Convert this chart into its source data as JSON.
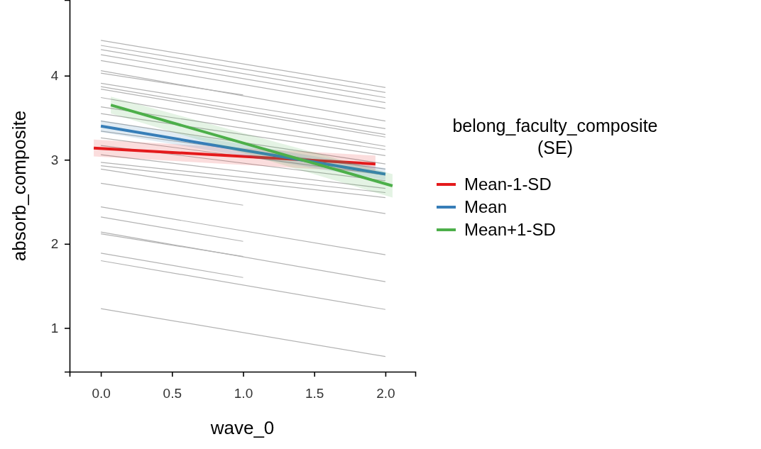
{
  "chart_data": {
    "type": "line",
    "xlabel": "wave_0",
    "ylabel": "absorb_composite",
    "legend_title": "belong_faculty_composite (SE)",
    "legend": "right",
    "grid": false,
    "xlim": [
      -0.22,
      2.21
    ],
    "ylim": [
      0.48,
      4.9
    ],
    "xticks": [
      {
        "value": 0,
        "label": "0.0"
      },
      {
        "value": 0.5,
        "label": "0.5"
      },
      {
        "value": 1,
        "label": "1.0"
      },
      {
        "value": 1.5,
        "label": "1.5"
      },
      {
        "value": 2,
        "label": "2.0"
      }
    ],
    "yticks": [
      1,
      2,
      3,
      4
    ],
    "series": [
      {
        "color": "#b3b3b3",
        "x": [
          0,
          2
        ],
        "values": [
          4.42,
          3.86
        ]
      },
      {
        "color": "#b3b3b3",
        "x": [
          0,
          2
        ],
        "values": [
          4.36,
          3.8
        ]
      },
      {
        "color": "#b3b3b3",
        "x": [
          0,
          2
        ],
        "values": [
          4.31,
          3.74
        ]
      },
      {
        "color": "#b3b3b3",
        "x": [
          0,
          2
        ],
        "values": [
          4.25,
          3.68
        ]
      },
      {
        "color": "#b3b3b3",
        "x": [
          0,
          2
        ],
        "values": [
          4.18,
          3.61
        ]
      },
      {
        "color": "#b3b3b3",
        "x": [
          0,
          2
        ],
        "values": [
          4.06,
          3.46
        ]
      },
      {
        "color": "#b3b3b3",
        "x": [
          0,
          1
        ],
        "values": [
          4.03,
          3.77
        ]
      },
      {
        "color": "#b3b3b3",
        "x": [
          0,
          2
        ],
        "values": [
          3.91,
          3.37
        ]
      },
      {
        "color": "#b3b3b3",
        "x": [
          0,
          2
        ],
        "values": [
          3.87,
          3.3
        ]
      },
      {
        "color": "#b3b3b3",
        "x": [
          0,
          2
        ],
        "values": [
          3.84,
          3.27
        ]
      },
      {
        "color": "#b3b3b3",
        "x": [
          0,
          2
        ],
        "values": [
          3.74,
          3.16
        ]
      },
      {
        "color": "#b3b3b3",
        "x": [
          0,
          2
        ],
        "values": [
          3.63,
          3.12
        ]
      },
      {
        "color": "#b3b3b3",
        "x": [
          0,
          2
        ],
        "values": [
          3.55,
          3.05
        ]
      },
      {
        "color": "#b3b3b3",
        "x": [
          0,
          2
        ],
        "values": [
          3.46,
          2.95
        ]
      },
      {
        "color": "#b3b3b3",
        "x": [
          0,
          2
        ],
        "values": [
          3.34,
          2.89
        ]
      },
      {
        "color": "#b3b3b3",
        "x": [
          0,
          2
        ],
        "values": [
          3.26,
          2.82
        ]
      },
      {
        "color": "#b3b3b3",
        "x": [
          0,
          2
        ],
        "values": [
          3.17,
          2.75
        ]
      },
      {
        "color": "#b3b3b3",
        "x": [
          0,
          2
        ],
        "values": [
          3.06,
          2.66
        ]
      },
      {
        "color": "#b3b3b3",
        "x": [
          0,
          2
        ],
        "values": [
          2.97,
          2.61
        ]
      },
      {
        "color": "#b3b3b3",
        "x": [
          0,
          2
        ],
        "values": [
          2.93,
          2.55
        ]
      },
      {
        "color": "#b3b3b3",
        "x": [
          0,
          2
        ],
        "values": [
          2.89,
          2.36
        ]
      },
      {
        "color": "#b3b3b3",
        "x": [
          0,
          1
        ],
        "values": [
          2.72,
          2.46
        ]
      },
      {
        "color": "#b3b3b3",
        "x": [
          0,
          2
        ],
        "values": [
          2.44,
          1.87
        ]
      },
      {
        "color": "#b3b3b3",
        "x": [
          0,
          1
        ],
        "values": [
          2.32,
          2.03
        ]
      },
      {
        "color": "#b3b3b3",
        "x": [
          0,
          2
        ],
        "values": [
          2.14,
          1.55
        ]
      },
      {
        "color": "#b3b3b3",
        "x": [
          0,
          1
        ],
        "values": [
          2.12,
          1.85
        ]
      },
      {
        "color": "#b3b3b3",
        "x": [
          0,
          1
        ],
        "values": [
          1.89,
          1.6
        ]
      },
      {
        "color": "#b3b3b3",
        "x": [
          0,
          2
        ],
        "values": [
          1.8,
          1.22
        ]
      },
      {
        "color": "#b3b3b3",
        "x": [
          0,
          2
        ],
        "values": [
          1.23,
          0.66
        ]
      },
      {
        "name": "Mean-1-SD",
        "color": "#e41a1c",
        "x": [
          -0.05,
          1.93
        ],
        "values": [
          3.14,
          2.95
        ],
        "lower": [
          3.04,
          2.85
        ],
        "upper": [
          3.24,
          3.05
        ]
      },
      {
        "name": "Mean",
        "color": "#377eb8",
        "x": [
          0,
          2
        ],
        "values": [
          3.4,
          2.83
        ],
        "lower": [
          3.33,
          2.76
        ],
        "upper": [
          3.47,
          2.9
        ]
      },
      {
        "name": "Mean+1-SD",
        "color": "#4daf4a",
        "x": [
          0.07,
          2.05
        ],
        "values": [
          3.65,
          2.69
        ],
        "lower": [
          3.55,
          2.55
        ],
        "upper": [
          3.75,
          2.83
        ]
      }
    ]
  }
}
